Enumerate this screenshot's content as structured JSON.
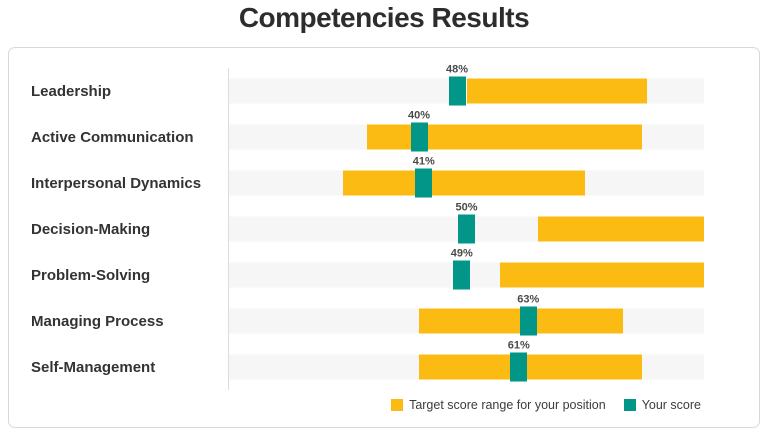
{
  "title": "Competencies Results",
  "colors": {
    "target": "#FBBB12",
    "score": "#019688",
    "track": "#F6F6F6",
    "axis": "#DDDDDD"
  },
  "legend": {
    "items": [
      {
        "label": "Target score range for your position",
        "key": "target"
      },
      {
        "label": "Your score",
        "key": "score"
      }
    ]
  },
  "chart_data": {
    "type": "bar",
    "orientation": "horizontal",
    "title": "Competencies Results",
    "categories": [
      "Leadership",
      "Active Communication",
      "Interpersonal Dynamics",
      "Decision-Making",
      "Problem-Solving",
      "Managing Process",
      "Self-Management"
    ],
    "series": [
      {
        "name": "Target score range for your position",
        "style": "range-bar",
        "color": "#FBBB12",
        "values": [
          [
            50,
            88
          ],
          [
            29,
            87
          ],
          [
            24,
            75
          ],
          [
            65,
            100
          ],
          [
            57,
            100
          ],
          [
            40,
            83
          ],
          [
            40,
            87
          ]
        ]
      },
      {
        "name": "Your score",
        "style": "marker",
        "color": "#019688",
        "values": [
          48,
          40,
          41,
          50,
          49,
          63,
          61
        ]
      }
    ],
    "value_labels": [
      "48%",
      "40%",
      "41%",
      "50%",
      "49%",
      "63%",
      "61%"
    ],
    "xlim": [
      0,
      100
    ],
    "grid": false,
    "legend_position": "bottom-right"
  }
}
